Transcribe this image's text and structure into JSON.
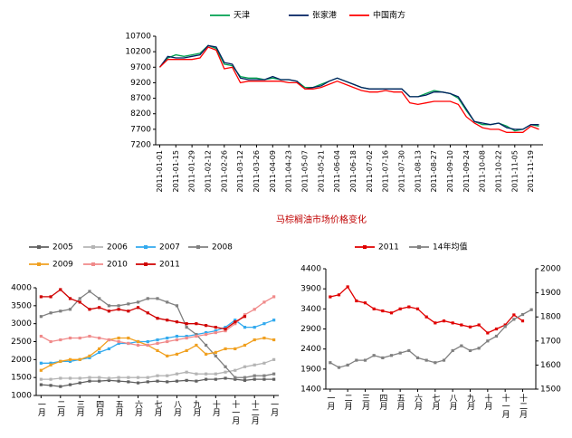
{
  "caption": "马棕榈油市场价格变化",
  "chart_data": [
    {
      "type": "line",
      "categories": [
        "2011-01-01",
        null,
        "2011-01-15",
        null,
        "2011-01-29",
        null,
        "2011-02-12",
        null,
        "2011-02-26",
        null,
        "2011-03-12",
        null,
        "2011-03-26",
        null,
        "2011-04-09",
        null,
        "2011-04-23",
        null,
        "2011-05-07",
        null,
        "2011-05-21",
        null,
        "2011-06-04",
        null,
        "2011-06-18",
        null,
        "2011-07-02",
        null,
        "2011-07-16",
        null,
        "2011-07-30",
        null,
        "2011-08-13",
        null,
        "2011-08-27",
        null,
        "2011-09-10",
        null,
        "2011-09-24",
        null,
        "2011-10-08",
        null,
        "2011-10-22",
        null,
        "2011-11-05",
        null,
        "2011-11-19",
        null
      ],
      "series": [
        {
          "name": "天津",
          "color": "#00a050",
          "values": [
            9700,
            10000,
            10100,
            10050,
            10100,
            10150,
            10400,
            10300,
            9800,
            9750,
            9400,
            9350,
            9350,
            9300,
            9350,
            9300,
            9300,
            9250,
            9050,
            9050,
            9150,
            9250,
            9350,
            9250,
            9150,
            9050,
            9000,
            9000,
            9000,
            9000,
            9000,
            8750,
            8750,
            8850,
            8950,
            8900,
            8850,
            8700,
            8300,
            7950,
            7850,
            7850,
            7900,
            7800,
            7650,
            7700,
            7850,
            7800
          ]
        },
        {
          "name": "张家港",
          "color": "#002060",
          "values": [
            9700,
            10050,
            10000,
            10000,
            10050,
            10100,
            10400,
            10350,
            9850,
            9800,
            9350,
            9300,
            9300,
            9300,
            9400,
            9300,
            9300,
            9250,
            9000,
            9050,
            9100,
            9250,
            9350,
            9250,
            9150,
            9050,
            9000,
            9000,
            9000,
            9000,
            9000,
            8750,
            8750,
            8800,
            8900,
            8900,
            8850,
            8750,
            8350,
            7950,
            7900,
            7850,
            7900,
            7750,
            7700,
            7700,
            7850,
            7850
          ]
        },
        {
          "name": "中国南方",
          "color": "#ff0000",
          "values": [
            9700,
            9950,
            9950,
            9950,
            9950,
            10000,
            10350,
            10250,
            9650,
            9700,
            9200,
            9250,
            9250,
            9250,
            9250,
            9250,
            9200,
            9200,
            9000,
            9000,
            9050,
            9150,
            9250,
            9150,
            9050,
            8950,
            8900,
            8900,
            8950,
            8900,
            8900,
            8550,
            8500,
            8550,
            8600,
            8600,
            8600,
            8500,
            8100,
            7900,
            7750,
            7700,
            7700,
            7600,
            7600,
            7600,
            7800,
            7700
          ]
        }
      ],
      "ylim": [
        7200,
        10700
      ],
      "yticks": [
        7200,
        7700,
        8200,
        8700,
        9200,
        9700,
        10200,
        10700
      ]
    },
    {
      "type": "line",
      "categories": [
        "一月",
        null,
        "二月",
        null,
        "三月",
        null,
        "四月",
        null,
        "五月",
        null,
        "六月",
        null,
        "七月",
        null,
        "八月",
        null,
        "九月",
        null,
        "十月",
        null,
        "十一月",
        null,
        "十二月",
        null,
        "一月"
      ],
      "series": [
        {
          "name": "2005",
          "color": "#606060",
          "values": [
            1300,
            1280,
            1250,
            1300,
            1350,
            1400,
            1400,
            1420,
            1400,
            1380,
            1350,
            1380,
            1400,
            1380,
            1400,
            1420,
            1400,
            1450,
            1450,
            1480,
            1450,
            1420,
            1450,
            1450,
            1450
          ]
        },
        {
          "name": "2006",
          "color": "#b4b4b4",
          "values": [
            1450,
            1450,
            1480,
            1480,
            1480,
            1500,
            1500,
            1480,
            1500,
            1500,
            1500,
            1500,
            1550,
            1550,
            1600,
            1650,
            1600,
            1600,
            1600,
            1650,
            1700,
            1800,
            1850,
            1900,
            2000
          ]
        },
        {
          "name": "2007",
          "color": "#33aaee",
          "values": [
            1900,
            1900,
            1950,
            1950,
            2000,
            2050,
            2200,
            2300,
            2450,
            2450,
            2500,
            2500,
            2550,
            2600,
            2650,
            2650,
            2700,
            2750,
            2800,
            2900,
            3100,
            2900,
            2900,
            3000,
            3100
          ]
        },
        {
          "name": "2008",
          "color": "#808080",
          "values": [
            3200,
            3300,
            3350,
            3400,
            3700,
            3900,
            3700,
            3500,
            3500,
            3550,
            3600,
            3700,
            3700,
            3600,
            3500,
            2900,
            2700,
            2400,
            2100,
            1800,
            1500,
            1500,
            1550,
            1550,
            1600
          ]
        },
        {
          "name": "2009",
          "color": "#f0a020",
          "values": [
            1700,
            1850,
            1950,
            2000,
            2000,
            2100,
            2300,
            2550,
            2600,
            2600,
            2500,
            2400,
            2250,
            2100,
            2150,
            2250,
            2400,
            2150,
            2200,
            2300,
            2300,
            2400,
            2550,
            2600,
            2550
          ]
        },
        {
          "name": "2010",
          "color": "#f08a8a",
          "values": [
            2650,
            2500,
            2550,
            2600,
            2600,
            2650,
            2600,
            2550,
            2500,
            2450,
            2400,
            2400,
            2450,
            2500,
            2550,
            2600,
            2650,
            2700,
            2750,
            2800,
            3000,
            3250,
            3400,
            3600,
            3750
          ]
        },
        {
          "name": "2011",
          "color": "#d00000",
          "values": [
            3750,
            3750,
            3950,
            3700,
            3600,
            3400,
            3450,
            3350,
            3400,
            3350,
            3450,
            3300,
            3150,
            3100,
            3050,
            3000,
            3000,
            2950,
            2900,
            2850,
            3050,
            3200,
            null,
            null,
            null
          ]
        }
      ],
      "ylim": [
        1000,
        4000
      ],
      "yticks": [
        1000,
        1500,
        2000,
        2500,
        3000,
        3500,
        4000
      ],
      "markers": true
    },
    {
      "type": "line",
      "categories": [
        "一月",
        null,
        "二月",
        null,
        "三月",
        null,
        "四月",
        null,
        "五月",
        null,
        "六月",
        null,
        "七月",
        null,
        "八月",
        null,
        "九月",
        null,
        "十月",
        null,
        "十一月",
        null,
        "十二月",
        null
      ],
      "series": [
        {
          "name": "2011",
          "color": "#e00000",
          "values": [
            3700,
            3750,
            3950,
            3600,
            3550,
            3400,
            3350,
            3300,
            3400,
            3450,
            3400,
            3200,
            3050,
            3100,
            3050,
            3000,
            2950,
            3000,
            2800,
            2900,
            3000,
            3250,
            3100,
            null
          ]
        },
        {
          "name": "14年均值",
          "color": "#808080",
          "axis": "y2",
          "values": [
            1610,
            1590,
            1600,
            1620,
            1620,
            1640,
            1630,
            1640,
            1650,
            1660,
            1630,
            1620,
            1610,
            1620,
            1660,
            1680,
            1660,
            1670,
            1700,
            1720,
            1760,
            1790,
            1810,
            1830
          ]
        }
      ],
      "ylim": [
        1400,
        4400
      ],
      "yticks": [
        1400,
        1900,
        2400,
        2900,
        3400,
        3900,
        4400
      ],
      "y2lim": [
        1500,
        2000
      ],
      "y2ticks": [
        1500,
        1600,
        1700,
        1800,
        1900,
        2000
      ],
      "markers": true
    }
  ]
}
